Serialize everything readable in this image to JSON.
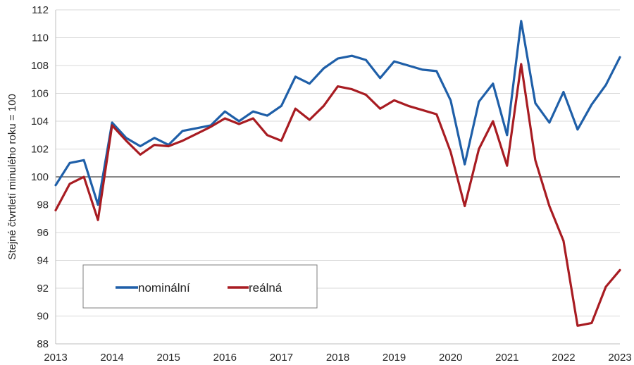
{
  "chart_data": {
    "type": "line",
    "title": "",
    "xlabel": "",
    "ylabel": "Stejné čtvrtletí minulého roku = 100",
    "ylim": [
      88,
      112
    ],
    "yticks": [
      88,
      90,
      92,
      94,
      96,
      98,
      100,
      102,
      104,
      106,
      108,
      110,
      112
    ],
    "ytick_labels": [
      "88",
      "90",
      "92",
      "94",
      "96",
      "98",
      "100",
      "102",
      "104",
      "106",
      "108",
      "110",
      "112"
    ],
    "xticks": [
      2013,
      2014,
      2015,
      2016,
      2017,
      2018,
      2019,
      2020,
      2021,
      2022,
      2023
    ],
    "xtick_labels": [
      "2013",
      "2014",
      "2015",
      "2016",
      "2017",
      "2018",
      "2019",
      "2020",
      "2021",
      "2022",
      "2023"
    ],
    "reference_line": 100,
    "grid": true,
    "legend_position": "bottom-left",
    "x": [
      2013.0,
      2013.25,
      2013.5,
      2013.75,
      2014.0,
      2014.25,
      2014.5,
      2014.75,
      2015.0,
      2015.25,
      2015.5,
      2015.75,
      2016.0,
      2016.25,
      2016.5,
      2016.75,
      2017.0,
      2017.25,
      2017.5,
      2017.75,
      2018.0,
      2018.25,
      2018.5,
      2018.75,
      2019.0,
      2019.25,
      2019.5,
      2019.75,
      2020.0,
      2020.25,
      2020.5,
      2020.75,
      2021.0,
      2021.25,
      2021.5,
      2021.75,
      2022.0,
      2022.25,
      2022.5,
      2022.75,
      2023.0
    ],
    "series": [
      {
        "name": "nominální",
        "color": "#1F5FA8",
        "values": [
          99.4,
          101.0,
          101.2,
          98.0,
          103.9,
          102.8,
          102.2,
          102.8,
          102.3,
          103.3,
          103.5,
          103.7,
          104.7,
          104.0,
          104.7,
          104.4,
          105.1,
          107.2,
          106.7,
          107.8,
          108.5,
          108.7,
          108.4,
          107.1,
          108.3,
          108.0,
          107.7,
          107.6,
          105.5,
          100.9,
          105.4,
          106.7,
          103.0,
          111.2,
          105.3,
          103.9,
          106.1,
          103.4,
          105.2,
          106.6,
          108.6
        ]
      },
      {
        "name": "reálná",
        "color": "#A81C22",
        "values": [
          97.6,
          99.5,
          100.0,
          96.9,
          103.7,
          102.6,
          101.6,
          102.3,
          102.2,
          102.6,
          103.1,
          103.6,
          104.2,
          103.8,
          104.2,
          103.0,
          102.6,
          104.9,
          104.1,
          105.1,
          106.5,
          106.3,
          105.9,
          104.9,
          105.5,
          105.1,
          104.8,
          104.5,
          101.8,
          97.9,
          102.0,
          104.0,
          100.8,
          108.1,
          101.2,
          97.9,
          95.4,
          89.3,
          89.5,
          92.1,
          93.3
        ]
      }
    ]
  }
}
